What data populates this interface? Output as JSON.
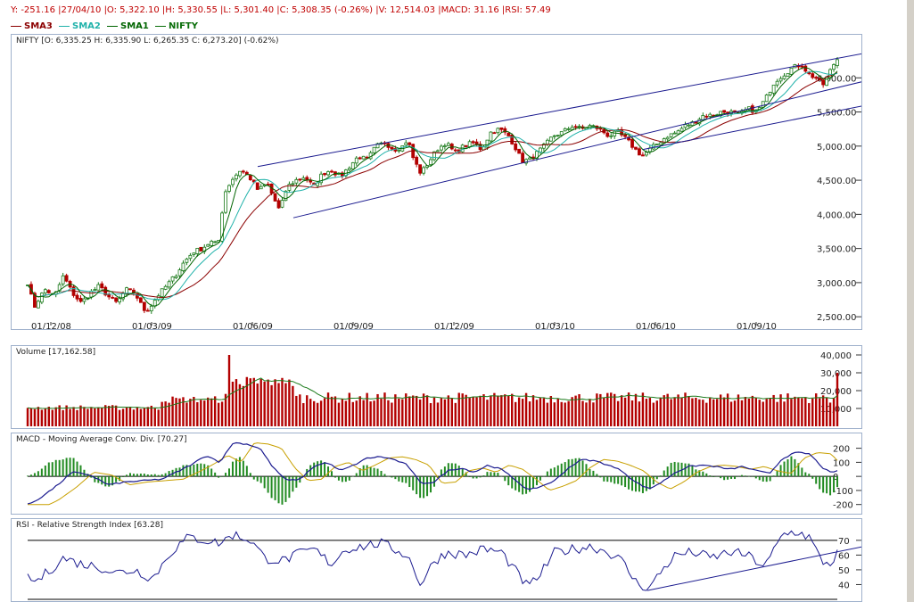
{
  "infobar": {
    "text": "Y: -251.16 |27/04/10 |O: 5,322.10 |H: 5,330.55 |L: 5,301.40 |C: 5,308.35 (-0.26%) |V: 12,514.03 |MACD: 31.16 |RSI: 57.49"
  },
  "legend": [
    {
      "name": "SMA3",
      "color": "#8b0000"
    },
    {
      "name": "SMA2",
      "color": "#20b2aa"
    },
    {
      "name": "SMA1",
      "color": "#006400"
    },
    {
      "name": "NIFTY",
      "color": "#0a6e0a"
    }
  ],
  "colors": {
    "up": "#1a7a1a",
    "down": "#b30000",
    "trend": "#1b1b8f",
    "macd": "#1b1b8f",
    "signal": "#c8a000",
    "hist": "#228b22",
    "rsi": "#1b1b8f",
    "volume": "#b30000",
    "volma": "#1a7a1a"
  },
  "chart_data": [
    {
      "type": "candlestick",
      "title": "NIFTY [O: 6,335.25  H: 6,335.90  L: 6,265.35  C: 6,273.20] (-0.62%)",
      "x_ticks": [
        "01/12/08",
        "01/03/09",
        "01/06/09",
        "01/09/09",
        "01/12/09",
        "01/03/10",
        "01/06/10",
        "01/09/10"
      ],
      "y_ticks": [
        "6,000.00",
        "5,500.00",
        "5,000.00",
        "4,500.00",
        "4,000.00",
        "3,500.00",
        "3,000.00",
        "2,500.00"
      ],
      "ylim": [
        2450,
        6500
      ],
      "close_path": [
        [
          0,
          3000
        ],
        [
          4,
          2800
        ],
        [
          8,
          2650
        ],
        [
          14,
          2800
        ],
        [
          20,
          2900
        ],
        [
          30,
          2800
        ],
        [
          40,
          3100
        ],
        [
          50,
          2850
        ],
        [
          60,
          2700
        ],
        [
          70,
          2850
        ],
        [
          80,
          2950
        ],
        [
          90,
          2800
        ],
        [
          100,
          2700
        ],
        [
          110,
          2900
        ],
        [
          120,
          2850
        ],
        [
          130,
          2600
        ],
        [
          136,
          2620
        ],
        [
          145,
          2800
        ],
        [
          155,
          2950
        ],
        [
          165,
          3100
        ],
        [
          175,
          3300
        ],
        [
          185,
          3450
        ],
        [
          195,
          3500
        ],
        [
          205,
          3600
        ],
        [
          213,
          3550
        ],
        [
          220,
          4300
        ],
        [
          228,
          4500
        ],
        [
          238,
          4650
        ],
        [
          248,
          4550
        ],
        [
          258,
          4350
        ],
        [
          268,
          4450
        ],
        [
          275,
          4250
        ],
        [
          282,
          4050
        ],
        [
          290,
          4400
        ],
        [
          300,
          4500
        ],
        [
          310,
          4550
        ],
        [
          320,
          4400
        ],
        [
          330,
          4600
        ],
        [
          340,
          4650
        ],
        [
          350,
          4550
        ],
        [
          360,
          4700
        ],
        [
          370,
          4850
        ],
        [
          380,
          4800
        ],
        [
          390,
          5000
        ],
        [
          400,
          5050
        ],
        [
          410,
          4950
        ],
        [
          420,
          5000
        ],
        [
          425,
          5100
        ],
        [
          432,
          4800
        ],
        [
          440,
          4600
        ],
        [
          448,
          4750
        ],
        [
          458,
          4950
        ],
        [
          468,
          5050
        ],
        [
          478,
          4900
        ],
        [
          488,
          5000
        ],
        [
          498,
          5050
        ],
        [
          508,
          4950
        ],
        [
          518,
          5200
        ],
        [
          528,
          5250
        ],
        [
          538,
          5150
        ],
        [
          545,
          5000
        ],
        [
          553,
          4780
        ],
        [
          562,
          4800
        ],
        [
          570,
          4900
        ],
        [
          578,
          5000
        ],
        [
          588,
          5150
        ],
        [
          598,
          5200
        ],
        [
          610,
          5300
        ],
        [
          620,
          5250
        ],
        [
          630,
          5300
        ],
        [
          640,
          5250
        ],
        [
          650,
          5150
        ],
        [
          660,
          5200
        ],
        [
          670,
          5100
        ],
        [
          680,
          4950
        ],
        [
          688,
          4850
        ],
        [
          696,
          4950
        ],
        [
          706,
          5050
        ],
        [
          716,
          5150
        ],
        [
          726,
          5200
        ],
        [
          736,
          5300
        ],
        [
          746,
          5350
        ],
        [
          756,
          5450
        ],
        [
          766,
          5450
        ],
        [
          776,
          5500
        ],
        [
          786,
          5500
        ],
        [
          796,
          5450
        ],
        [
          806,
          5550
        ],
        [
          816,
          5500
        ],
        [
          826,
          5700
        ],
        [
          836,
          5950
        ],
        [
          846,
          6050
        ],
        [
          856,
          6150
        ],
        [
          866,
          6200
        ],
        [
          874,
          6050
        ],
        [
          882,
          6000
        ],
        [
          890,
          5900
        ],
        [
          896,
          6050
        ],
        [
          902,
          6200
        ],
        [
          906,
          6273
        ]
      ],
      "trendlines": [
        [
          [
            258,
            4700
          ],
          [
            955,
            6400
          ]
        ],
        [
          [
            298,
            3950
          ],
          [
            970,
            6050
          ]
        ],
        [
          [
            690,
            4950
          ],
          [
            960,
            5650
          ]
        ]
      ],
      "series": [
        {
          "name": "SMA3"
        },
        {
          "name": "SMA2"
        },
        {
          "name": "SMA1"
        },
        {
          "name": "NIFTY"
        }
      ]
    },
    {
      "type": "bar",
      "title": "Volume [17,162.58]",
      "y_ticks": [
        "40,000",
        "30,000",
        "20,000",
        "10,000"
      ],
      "ylim": [
        0,
        42000
      ],
      "spikes": [
        [
          225,
          40000
        ],
        [
          905,
          30000
        ]
      ],
      "base_level": 16000
    },
    {
      "type": "line",
      "title": "MACD - Moving Average Conv. Div. [70.27]",
      "y_ticks": [
        "200",
        "100",
        "0",
        "-100",
        "-200"
      ],
      "ylim": [
        -240,
        280
      ],
      "macd_path": [
        [
          0,
          -200
        ],
        [
          10,
          -170
        ],
        [
          30,
          -80
        ],
        [
          50,
          30
        ],
        [
          70,
          10
        ],
        [
          90,
          -60
        ],
        [
          110,
          -40
        ],
        [
          130,
          -30
        ],
        [
          150,
          -20
        ],
        [
          170,
          40
        ],
        [
          185,
          90
        ],
        [
          200,
          150
        ],
        [
          215,
          100
        ],
        [
          230,
          240
        ],
        [
          245,
          230
        ],
        [
          260,
          200
        ],
        [
          275,
          60
        ],
        [
          290,
          -30
        ],
        [
          305,
          -20
        ],
        [
          320,
          70
        ],
        [
          335,
          100
        ],
        [
          350,
          40
        ],
        [
          365,
          80
        ],
        [
          380,
          130
        ],
        [
          395,
          140
        ],
        [
          410,
          120
        ],
        [
          425,
          80
        ],
        [
          440,
          -50
        ],
        [
          455,
          -40
        ],
        [
          470,
          40
        ],
        [
          485,
          60
        ],
        [
          500,
          30
        ],
        [
          515,
          80
        ],
        [
          530,
          50
        ],
        [
          545,
          -20
        ],
        [
          560,
          -100
        ],
        [
          575,
          -70
        ],
        [
          590,
          -30
        ],
        [
          605,
          60
        ],
        [
          620,
          120
        ],
        [
          635,
          110
        ],
        [
          650,
          80
        ],
        [
          665,
          40
        ],
        [
          680,
          -40
        ],
        [
          695,
          -90
        ],
        [
          710,
          -40
        ],
        [
          725,
          30
        ],
        [
          740,
          70
        ],
        [
          755,
          80
        ],
        [
          770,
          70
        ],
        [
          785,
          50
        ],
        [
          800,
          70
        ],
        [
          815,
          40
        ],
        [
          830,
          20
        ],
        [
          845,
          130
        ],
        [
          860,
          170
        ],
        [
          875,
          160
        ],
        [
          890,
          60
        ],
        [
          900,
          20
        ],
        [
          910,
          60
        ]
      ],
      "signal_offset": 6,
      "hist_scale": 0.35
    },
    {
      "type": "line",
      "title": "RSI - Relative Strength Index [63.28]",
      "y_ticks": [
        "70",
        "60",
        "50",
        "40"
      ],
      "ylim": [
        30,
        82
      ],
      "rsi_path": [
        [
          0,
          44
        ],
        [
          10,
          42
        ],
        [
          25,
          50
        ],
        [
          40,
          58
        ],
        [
          60,
          54
        ],
        [
          80,
          52
        ],
        [
          100,
          48
        ],
        [
          120,
          50
        ],
        [
          140,
          44
        ],
        [
          160,
          62
        ],
        [
          180,
          72
        ],
        [
          200,
          70
        ],
        [
          215,
          68
        ],
        [
          230,
          74
        ],
        [
          250,
          70
        ],
        [
          265,
          58
        ],
        [
          285,
          56
        ],
        [
          300,
          60
        ],
        [
          320,
          64
        ],
        [
          340,
          54
        ],
        [
          355,
          64
        ],
        [
          375,
          66
        ],
        [
          395,
          68
        ],
        [
          410,
          64
        ],
        [
          425,
          60
        ],
        [
          440,
          40
        ],
        [
          455,
          56
        ],
        [
          470,
          62
        ],
        [
          490,
          60
        ],
        [
          510,
          64
        ],
        [
          530,
          62
        ],
        [
          545,
          50
        ],
        [
          560,
          38
        ],
        [
          575,
          48
        ],
        [
          590,
          62
        ],
        [
          610,
          64
        ],
        [
          630,
          66
        ],
        [
          650,
          62
        ],
        [
          665,
          56
        ],
        [
          680,
          42
        ],
        [
          695,
          37
        ],
        [
          710,
          50
        ],
        [
          725,
          60
        ],
        [
          745,
          62
        ],
        [
          765,
          58
        ],
        [
          785,
          62
        ],
        [
          805,
          60
        ],
        [
          825,
          52
        ],
        [
          845,
          74
        ],
        [
          860,
          76
        ],
        [
          875,
          72
        ],
        [
          888,
          56
        ],
        [
          898,
          54
        ],
        [
          908,
          63
        ]
      ],
      "levels": [
        70,
        30
      ],
      "trendline": [
        [
          695,
          36
        ],
        [
          955,
          68
        ]
      ]
    }
  ]
}
